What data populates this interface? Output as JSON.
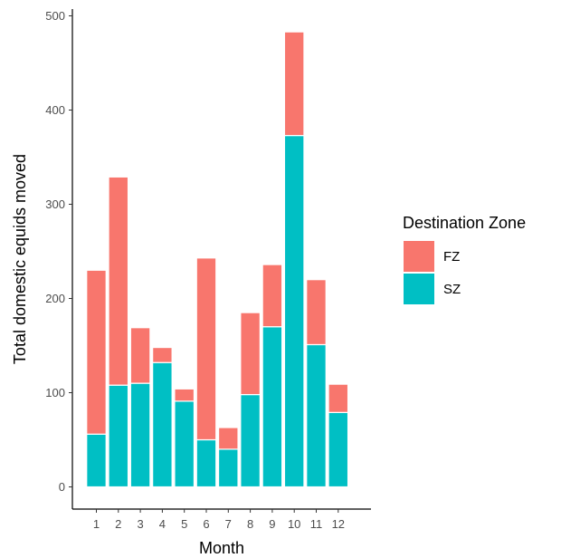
{
  "chart_data": {
    "type": "bar",
    "stacked": true,
    "categories": [
      "1",
      "2",
      "3",
      "4",
      "5",
      "6",
      "7",
      "8",
      "9",
      "10",
      "11",
      "12"
    ],
    "series": [
      {
        "name": "SZ",
        "color": "#00BFC4",
        "values": [
          56,
          108,
          110,
          132,
          91,
          50,
          40,
          98,
          170,
          373,
          151,
          79
        ]
      },
      {
        "name": "FZ",
        "color": "#F8766D",
        "values": [
          174,
          221,
          59,
          16,
          13,
          193,
          23,
          87,
          66,
          110,
          69,
          30
        ]
      }
    ],
    "legend_order": [
      "FZ",
      "SZ"
    ],
    "xlabel": "Month",
    "ylabel": "Total domestic equids moved",
    "ylim": [
      0,
      500
    ],
    "yticks": [
      0,
      100,
      200,
      300,
      400,
      500
    ],
    "grid": false,
    "legend": {
      "title": "Destination Zone",
      "placement": "right"
    }
  }
}
